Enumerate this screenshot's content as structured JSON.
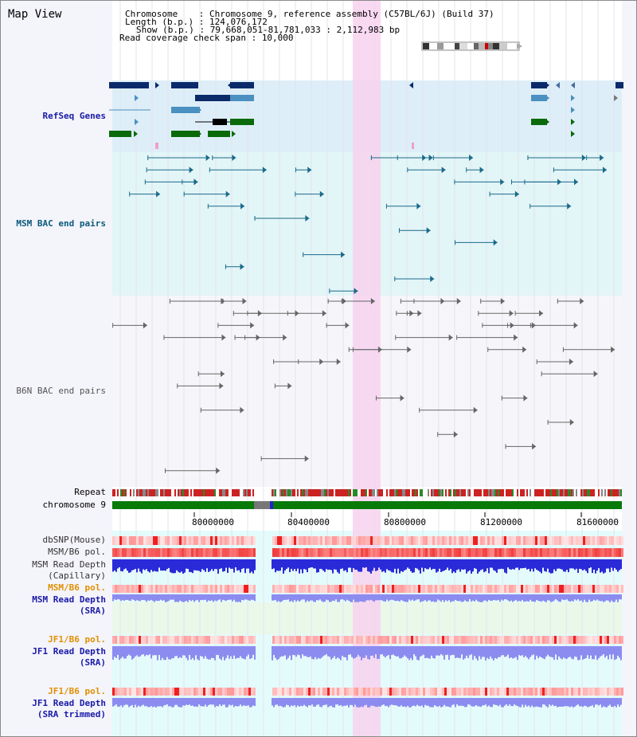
{
  "view": {
    "title": "Map View",
    "header": {
      "chromosome_label": "Chromosome    : ",
      "chromosome_value": "Chromosome 9, reference assembly (C57BL/6J) (Build 37)",
      "length_label": "Length (b.p.) : ",
      "length_value": "124,076,172",
      "show_label": "Show (b.p.) : ",
      "show_value": "79,668,051-81,781,033 : 2,112,983 bp",
      "coverage_label": "Read coverage check span : ",
      "coverage_value": "10,000"
    }
  },
  "tracks": {
    "refseq": "RefSeq Genes",
    "msm_bac": "MSM BAC end pairs",
    "b6n_bac": "B6N BAC end pairs",
    "repeat": "Repeat",
    "chromosome": "chromosome 9",
    "dbsnp": "dbSNP(Mouse)",
    "msm_b6_pol_1": "MSM/B6 pol.",
    "msm_depth_cap_1": "MSM Read Depth",
    "msm_depth_cap_2": "(Capillary)",
    "msm_b6_pol_2": "MSM/B6 pol.",
    "msm_depth_sra_1": "MSM Read Depth",
    "msm_depth_sra_2": "(SRA)",
    "jf1_b6_pol_1": "JF1/B6 pol.",
    "jf1_depth_sra_1": "JF1 Read Depth",
    "jf1_depth_sra_2": "(SRA)",
    "jf1_b6_pol_2": "JF1/B6 pol.",
    "jf1_depth_trim_1": "JF1 Read Depth",
    "jf1_depth_trim_2": "(SRA trimmed)"
  },
  "ruler": {
    "ticks": [
      "80000000",
      "80400000",
      "80800000",
      "81200000",
      "81600000"
    ]
  },
  "colors": {
    "highlight": "#f7d2ef",
    "refseq_bg": "#ddeef8",
    "msm_bac_bg": "#e2f5f7",
    "chrom_green": "#087a08",
    "repeat_red": "#cc2222",
    "depth_blue": "#2a2ad8",
    "depth_light": "#8c8cf0",
    "pol_red": "#ff4c4c",
    "label_blue": "#1a1aa8",
    "label_orange": "#e09000",
    "label_teal": "#0a5a7a"
  }
}
